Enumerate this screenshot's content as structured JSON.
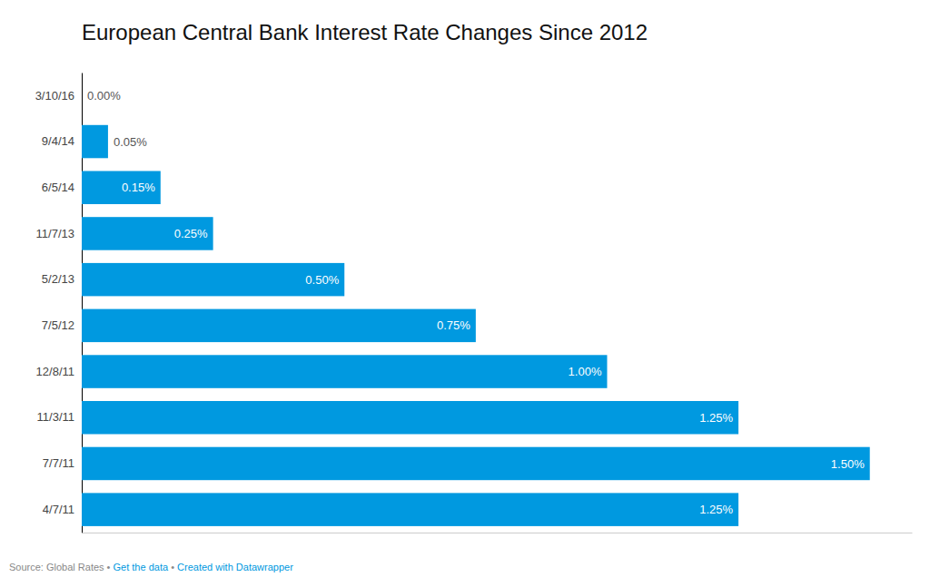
{
  "chart_data": {
    "type": "bar",
    "orientation": "horizontal",
    "title": "European Central Bank Interest Rate Changes Since 2012",
    "categories": [
      "3/10/16",
      "9/4/14",
      "6/5/14",
      "11/7/13",
      "5/2/13",
      "7/5/12",
      "12/8/11",
      "11/3/11",
      "7/7/11",
      "4/7/11"
    ],
    "values": [
      0.0,
      0.05,
      0.15,
      0.25,
      0.5,
      0.75,
      1.0,
      1.25,
      1.5,
      1.25
    ],
    "value_labels": [
      "0.00%",
      "0.05%",
      "0.15%",
      "0.25%",
      "0.50%",
      "0.75%",
      "1.00%",
      "1.25%",
      "1.50%",
      "1.25%"
    ],
    "data_labels": true,
    "color": "#0099E0",
    "xlim": [
      0,
      1.58
    ],
    "grid": false,
    "tick_labels": "y",
    "annotations": [
      "Source: Global Rates • ",
      "Get the data",
      " • ",
      "Created with Datawrapper"
    ]
  }
}
